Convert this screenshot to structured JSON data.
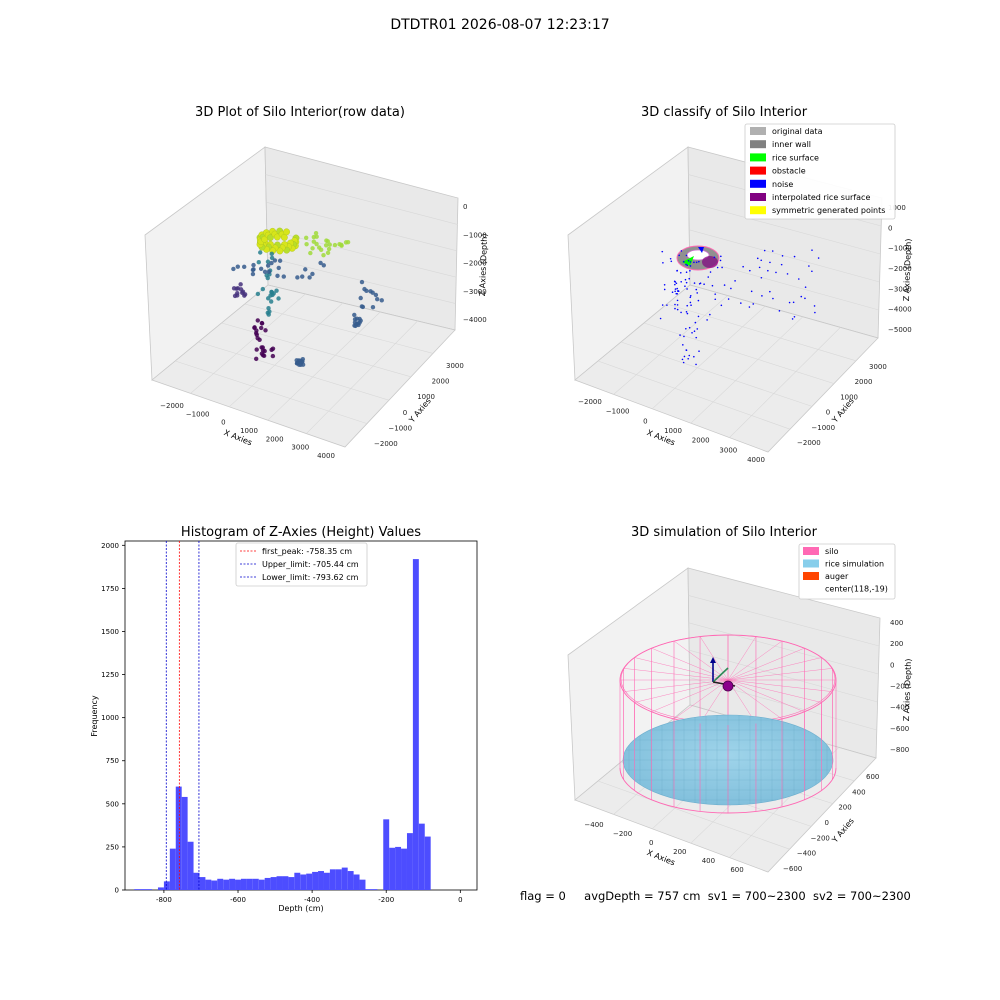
{
  "figure": {
    "suptitle": "DTDTR01 2026-08-07 12:23:17",
    "status_line": {
      "flag": "flag = 0",
      "avg_depth": "avgDepth = 757 cm",
      "sv1": "sv1 = 700~2300",
      "sv2": "sv2 = 700~2300"
    }
  },
  "chart_data": [
    {
      "type": "scatter",
      "projection": "3d",
      "title": "3D Plot of Silo Interior(row data)",
      "xlabel": "X Axies",
      "ylabel": "Y Axies",
      "zlabel": "Z Axies (Depth)",
      "x_ticks": [
        "−2000",
        "−1000",
        "0",
        "1000",
        "2000",
        "3000",
        "4000"
      ],
      "y_ticks": [
        "−2000",
        "−1000",
        "0",
        "1000",
        "2000",
        "3000"
      ],
      "z_ticks": [
        "0",
        "−1000",
        "−2000",
        "−3000",
        "−4000"
      ],
      "colormap": "viridis",
      "grid": true
    },
    {
      "type": "scatter",
      "projection": "3d",
      "title": "3D classify of Silo Interior",
      "xlabel": "X Axies",
      "ylabel": "Y Axies",
      "zlabel": "Z Axies (Depth)",
      "x_ticks": [
        "−2000",
        "−1000",
        "0",
        "1000",
        "2000",
        "3000",
        "4000"
      ],
      "y_ticks": [
        "−2000",
        "−1000",
        "0",
        "1000",
        "2000",
        "3000"
      ],
      "z_ticks": [
        "1000",
        "0",
        "−1000",
        "−2000",
        "−3000",
        "−4000",
        "−5000"
      ],
      "legend_position": "top-right",
      "legend": [
        {
          "label": "original data",
          "color": "#b0b0b0"
        },
        {
          "label": "inner wall",
          "color": "#808080"
        },
        {
          "label": "rice surface",
          "color": "#00ff00"
        },
        {
          "label": "obstacle",
          "color": "#ff0000"
        },
        {
          "label": "noise",
          "color": "#0000ff"
        },
        {
          "label": "interpolated rice surface",
          "color": "#800080"
        },
        {
          "label": "symmetric generated points",
          "color": "#ffff00"
        }
      ],
      "grid": true
    },
    {
      "type": "bar",
      "title": "Histogram of Z-Axies (Height) Values",
      "xlabel": "Depth (cm)",
      "ylabel": "Frequency",
      "xlim": [
        -905,
        45
      ],
      "ylim": [
        0,
        2025
      ],
      "x_ticks": [
        -800,
        -600,
        -400,
        -200,
        0
      ],
      "y_ticks": [
        0,
        250,
        500,
        750,
        1000,
        1250,
        1500,
        1750,
        2000
      ],
      "bar_color": "#4d4dff",
      "bin_width": 16,
      "bin_starts": [
        -880,
        -864,
        -848,
        -832,
        -816,
        -800,
        -784,
        -768,
        -752,
        -736,
        -720,
        -704,
        -688,
        -672,
        -656,
        -640,
        -624,
        -608,
        -592,
        -576,
        -560,
        -544,
        -528,
        -512,
        -496,
        -480,
        -464,
        -448,
        -432,
        -416,
        -400,
        -384,
        -368,
        -352,
        -336,
        -320,
        -304,
        -288,
        -272,
        -256,
        -240,
        -224,
        -208,
        -192,
        -176,
        -160,
        -144,
        -128,
        -112,
        -96,
        -80,
        -64,
        -48,
        -32,
        -16
      ],
      "values": [
        5,
        5,
        5,
        0,
        15,
        50,
        240,
        600,
        540,
        280,
        100,
        75,
        60,
        55,
        65,
        60,
        65,
        60,
        65,
        65,
        65,
        60,
        70,
        75,
        80,
        80,
        75,
        100,
        90,
        95,
        105,
        110,
        100,
        120,
        120,
        130,
        110,
        90,
        60,
        5,
        5,
        0,
        410,
        245,
        250,
        240,
        330,
        1920,
        385,
        310,
        0,
        0,
        0,
        0,
        0
      ],
      "reference_lines": [
        {
          "label": "first_peak: -758.35 cm",
          "x": -758.35,
          "color": "#ff0000"
        },
        {
          "label": "Upper_limit: -705.44 cm",
          "x": -705.44,
          "color": "#0000cc"
        },
        {
          "label": "Lower_limit: -793.62 cm",
          "x": -793.62,
          "color": "#0000cc"
        }
      ],
      "legend_position": "top-center",
      "grid": false
    },
    {
      "type": "surface",
      "projection": "3d",
      "title": "3D simulation of Silo Interior",
      "xlabel": "X Axies",
      "ylabel": "Y Axies",
      "zlabel": "Z Axies (Depth)",
      "x_ticks": [
        "−400",
        "−200",
        "0",
        "200",
        "400",
        "600"
      ],
      "y_ticks": [
        "−600",
        "−400",
        "−200",
        "0",
        "200",
        "400",
        "600"
      ],
      "z_ticks": [
        "400",
        "200",
        "0",
        "−200",
        "−400",
        "−600",
        "−800"
      ],
      "legend_position": "top-right",
      "legend": [
        {
          "label": "silo",
          "color": "#ff69b4"
        },
        {
          "label": "rice simulation",
          "color": "#87ceeb"
        },
        {
          "label": "auger",
          "color": "#ff4500"
        },
        {
          "label": "center(118,-19)",
          "color": ""
        }
      ],
      "grid": true
    }
  ]
}
